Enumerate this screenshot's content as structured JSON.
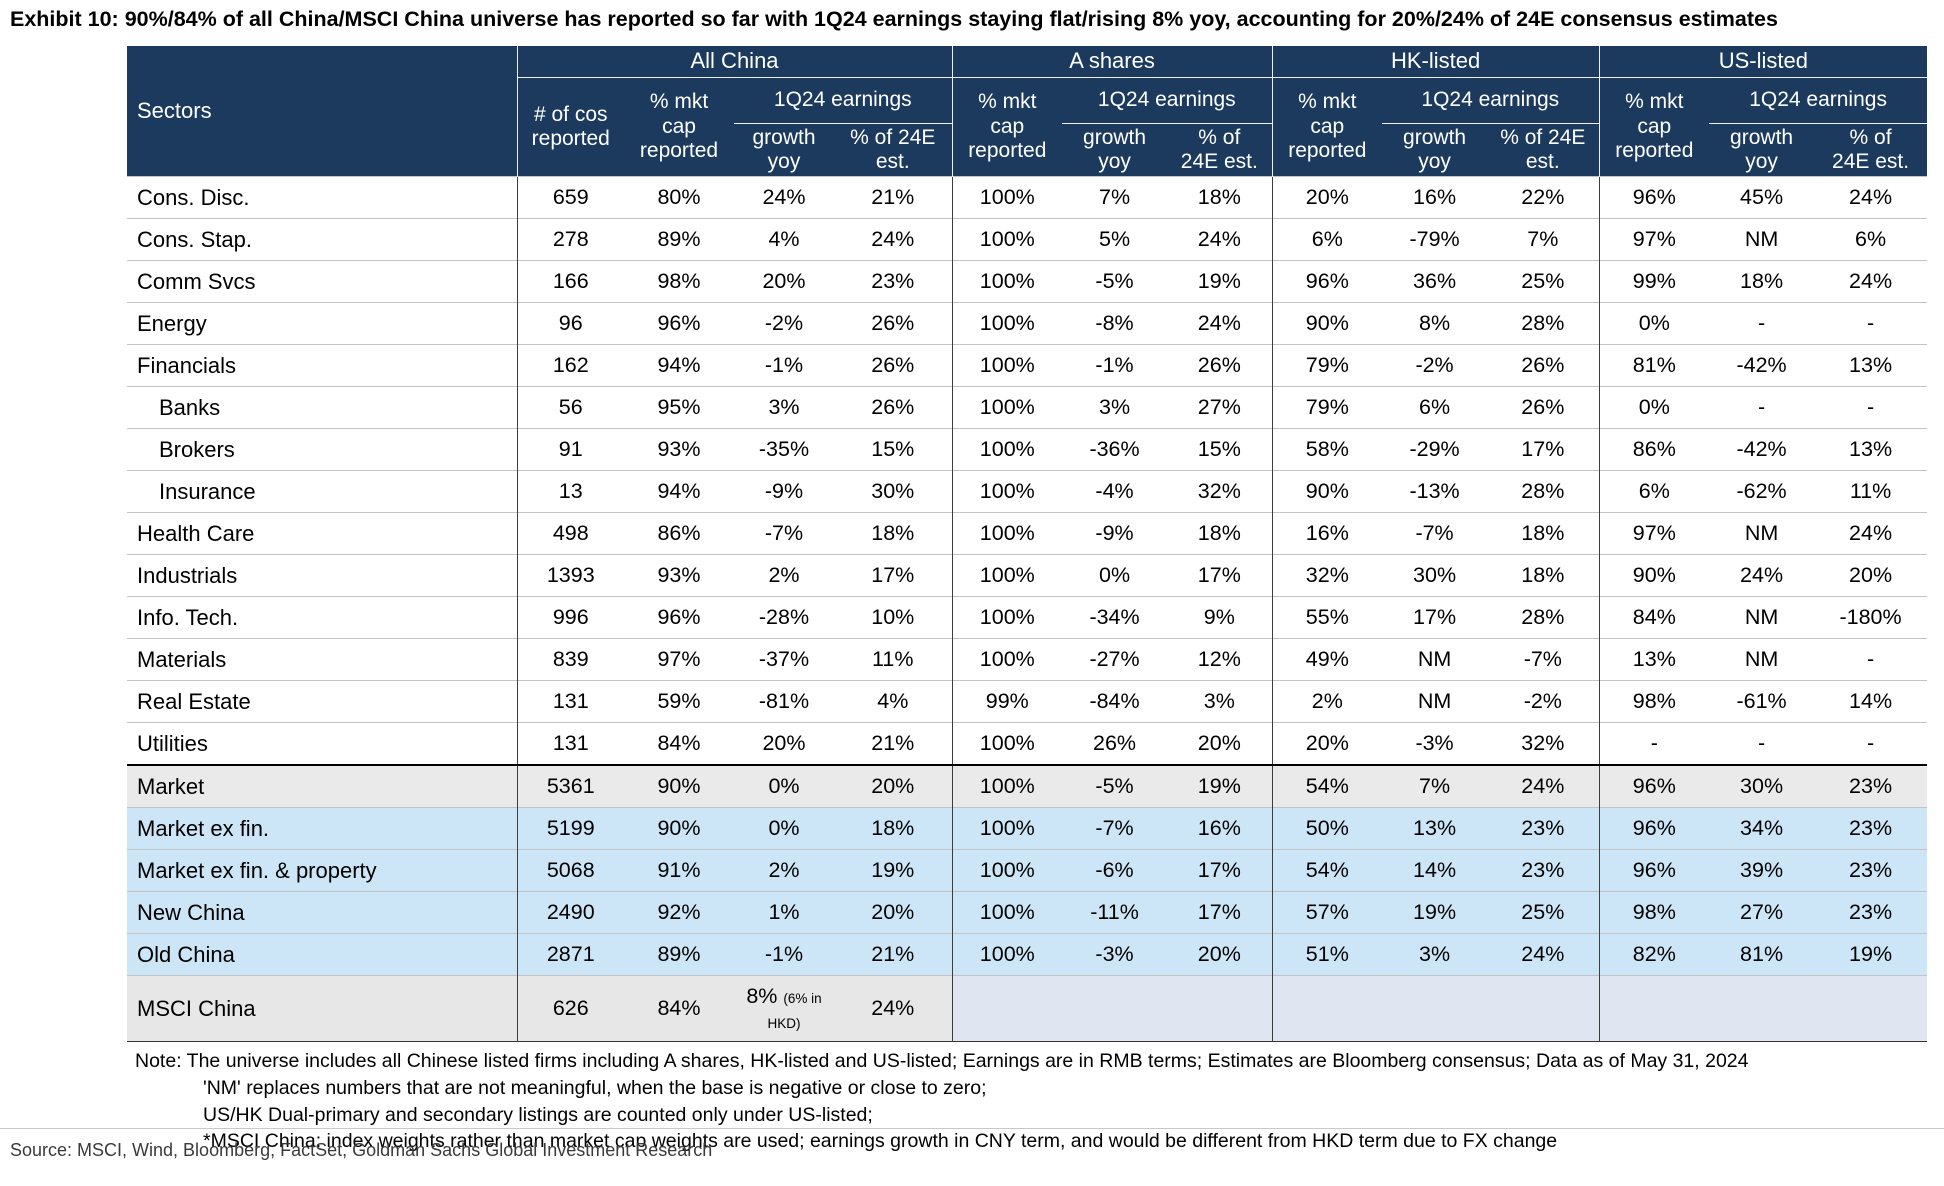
{
  "title": "Exhibit 10: 90%/84% of all China/MSCI China universe has reported so far with 1Q24 earnings staying flat/rising 8% yoy, accounting for 20%/24% of 24E consensus estimates",
  "colors": {
    "header_bg": "#1b3a5e",
    "header_text": "#ffffff",
    "row_blue": "#cde6f7",
    "row_gray": "#eaeaea",
    "row_msci_gray": "#e7e7e7",
    "row_msci_blue": "#dfe6f1",
    "grid_line": "#c4c4c4",
    "heavy_line": "#000000",
    "sep_line": "#3d3d3d"
  },
  "header": {
    "sectors": "Sectors",
    "groups": [
      {
        "label": "All China",
        "cols": [
          "# of cos\nreported",
          "% mkt\ncap\nreported"
        ],
        "earnings": "1Q24 earnings",
        "sub": [
          "growth\nyoy",
          "% of 24E\nest."
        ]
      },
      {
        "label": "A shares",
        "cols": [
          "% mkt\ncap\nreported"
        ],
        "earnings": "1Q24 earnings",
        "sub": [
          "growth\nyoy",
          "% of\n24E est."
        ]
      },
      {
        "label": "HK-listed",
        "cols": [
          "% mkt\ncap\nreported"
        ],
        "earnings": "1Q24 earnings",
        "sub": [
          "growth\nyoy",
          "% of 24E\nest."
        ]
      },
      {
        "label": "US-listed",
        "cols": [
          "% mkt\ncap\nreported"
        ],
        "earnings": "1Q24 earnings",
        "sub": [
          "growth\nyoy",
          "% of\n24E est."
        ]
      }
    ]
  },
  "table": {
    "rows": [
      {
        "name": "Cons. Disc.",
        "values": [
          "659",
          "80%",
          "24%",
          "21%",
          "100%",
          "7%",
          "18%",
          "20%",
          "16%",
          "22%",
          "96%",
          "45%",
          "24%"
        ]
      },
      {
        "name": "Cons. Stap.",
        "values": [
          "278",
          "89%",
          "4%",
          "24%",
          "100%",
          "5%",
          "24%",
          "6%",
          "-79%",
          "7%",
          "97%",
          "NM",
          "6%"
        ]
      },
      {
        "name": "Comm Svcs",
        "values": [
          "166",
          "98%",
          "20%",
          "23%",
          "100%",
          "-5%",
          "19%",
          "96%",
          "36%",
          "25%",
          "99%",
          "18%",
          "24%"
        ]
      },
      {
        "name": "Energy",
        "values": [
          "96",
          "96%",
          "-2%",
          "26%",
          "100%",
          "-8%",
          "24%",
          "90%",
          "8%",
          "28%",
          "0%",
          "-",
          "-"
        ]
      },
      {
        "name": "Financials",
        "values": [
          "162",
          "94%",
          "-1%",
          "26%",
          "100%",
          "-1%",
          "26%",
          "79%",
          "-2%",
          "26%",
          "81%",
          "-42%",
          "13%"
        ]
      },
      {
        "name": "Banks",
        "indent": true,
        "values": [
          "56",
          "95%",
          "3%",
          "26%",
          "100%",
          "3%",
          "27%",
          "79%",
          "6%",
          "26%",
          "0%",
          "-",
          "-"
        ]
      },
      {
        "name": "Brokers",
        "indent": true,
        "values": [
          "91",
          "93%",
          "-35%",
          "15%",
          "100%",
          "-36%",
          "15%",
          "58%",
          "-29%",
          "17%",
          "86%",
          "-42%",
          "13%"
        ]
      },
      {
        "name": "Insurance",
        "indent": true,
        "values": [
          "13",
          "94%",
          "-9%",
          "30%",
          "100%",
          "-4%",
          "32%",
          "90%",
          "-13%",
          "28%",
          "6%",
          "-62%",
          "11%"
        ]
      },
      {
        "name": "Health Care",
        "values": [
          "498",
          "86%",
          "-7%",
          "18%",
          "100%",
          "-9%",
          "18%",
          "16%",
          "-7%",
          "18%",
          "97%",
          "NM",
          "24%"
        ]
      },
      {
        "name": "Industrials",
        "values": [
          "1393",
          "93%",
          "2%",
          "17%",
          "100%",
          "0%",
          "17%",
          "32%",
          "30%",
          "18%",
          "90%",
          "24%",
          "20%"
        ]
      },
      {
        "name": "Info. Tech.",
        "values": [
          "996",
          "96%",
          "-28%",
          "10%",
          "100%",
          "-34%",
          "9%",
          "55%",
          "17%",
          "28%",
          "84%",
          "NM",
          "-180%"
        ]
      },
      {
        "name": "Materials",
        "values": [
          "839",
          "97%",
          "-37%",
          "11%",
          "100%",
          "-27%",
          "12%",
          "49%",
          "NM",
          "-7%",
          "13%",
          "NM",
          "-"
        ]
      },
      {
        "name": "Real Estate",
        "values": [
          "131",
          "59%",
          "-81%",
          "4%",
          "99%",
          "-84%",
          "3%",
          "2%",
          "NM",
          "-2%",
          "98%",
          "-61%",
          "14%"
        ]
      },
      {
        "name": "Utilities",
        "values": [
          "131",
          "84%",
          "20%",
          "21%",
          "100%",
          "26%",
          "20%",
          "20%",
          "-3%",
          "32%",
          "-",
          "-",
          "-"
        ]
      },
      {
        "name": "Market",
        "style": "gray",
        "thick_top": true,
        "values": [
          "5361",
          "90%",
          "0%",
          "20%",
          "100%",
          "-5%",
          "19%",
          "54%",
          "7%",
          "24%",
          "96%",
          "30%",
          "23%"
        ]
      },
      {
        "name": "Market ex fin.",
        "style": "blue",
        "values": [
          "5199",
          "90%",
          "0%",
          "18%",
          "100%",
          "-7%",
          "16%",
          "50%",
          "13%",
          "23%",
          "96%",
          "34%",
          "23%"
        ]
      },
      {
        "name": "Market ex fin. & property",
        "style": "blue",
        "values": [
          "5068",
          "91%",
          "2%",
          "19%",
          "100%",
          "-6%",
          "17%",
          "54%",
          "14%",
          "23%",
          "96%",
          "39%",
          "23%"
        ]
      },
      {
        "name": "New China",
        "style": "blue",
        "values": [
          "2490",
          "92%",
          "1%",
          "20%",
          "100%",
          "-11%",
          "17%",
          "57%",
          "19%",
          "25%",
          "98%",
          "27%",
          "23%"
        ]
      },
      {
        "name": "Old China",
        "style": "blue",
        "values": [
          "2871",
          "89%",
          "-1%",
          "21%",
          "100%",
          "-3%",
          "20%",
          "51%",
          "3%",
          "24%",
          "82%",
          "81%",
          "19%"
        ]
      },
      {
        "name": "MSCI China",
        "style": "msci",
        "growth_note": "(6% in HKD)",
        "values": [
          "626",
          "84%",
          "8%",
          "24%",
          "",
          "",
          "",
          "",
          "",
          "",
          "",
          "",
          ""
        ]
      }
    ]
  },
  "notes": [
    "Note: The universe includes all Chinese listed firms including A shares, HK-listed and US-listed; Earnings are in RMB terms; Estimates are Bloomberg consensus; Data as of May 31, 2024",
    "'NM' replaces numbers that are not meaningful, when the base is negative or close to zero;",
    "US/HK Dual-primary and secondary listings are counted only under US-listed;",
    "*MSCI China: index weights rather than market cap weights are used; earnings growth in CNY term, and would be different from HKD term due to FX change"
  ],
  "source": "Source: MSCI, Wind, Bloomberg, FactSet, Goldman Sachs Global Investment Research"
}
